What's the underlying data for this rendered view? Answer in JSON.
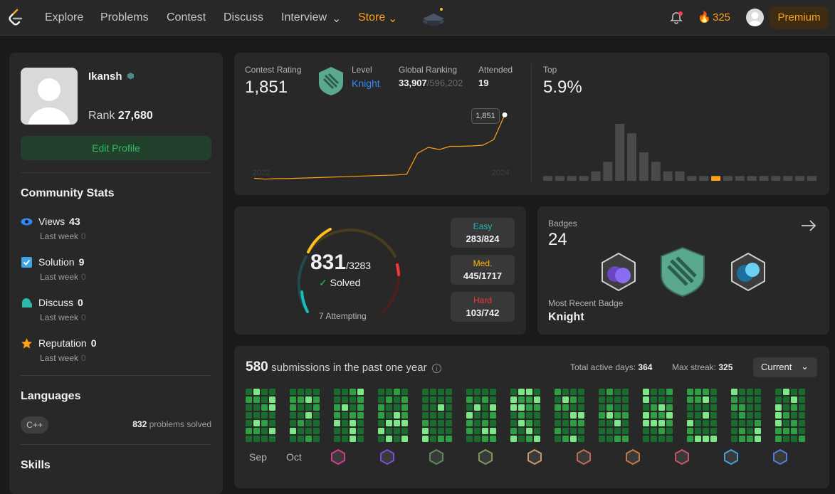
{
  "nav": {
    "items": [
      "Explore",
      "Problems",
      "Contest",
      "Discuss",
      "Interview",
      "Store"
    ],
    "streak": "325",
    "premium": "Premium",
    "accent": "#ffa116"
  },
  "profile": {
    "username": "Ikansh",
    "rank_label": "Rank",
    "rank_value": "27,680",
    "edit_label": "Edit Profile"
  },
  "community": {
    "title": "Community Stats",
    "stats": [
      {
        "label": "Views",
        "value": "43",
        "icon": "eye-icon",
        "sub": "Last week",
        "sub_value": "0"
      },
      {
        "label": "Solution",
        "value": "9",
        "icon": "solution-icon",
        "sub": "Last week",
        "sub_value": "0"
      },
      {
        "label": "Discuss",
        "value": "0",
        "icon": "discuss-icon",
        "sub": "Last week",
        "sub_value": "0"
      },
      {
        "label": "Reputation",
        "value": "0",
        "icon": "star-icon",
        "sub": "Last week",
        "sub_value": "0"
      }
    ]
  },
  "languages": {
    "title": "Languages",
    "tag": "C++",
    "count": "832",
    "suffix": "problems solved"
  },
  "skills": {
    "title": "Skills"
  },
  "contest": {
    "rating_label": "Contest Rating",
    "rating": "1,851",
    "level_label": "Level",
    "level": "Knight",
    "global_label": "Global Ranking",
    "global": "33,907",
    "global_total": "/596,202",
    "attended_label": "Attended",
    "attended": "19",
    "top_label": "Top",
    "top": "5.9%",
    "tooltip": "1,851",
    "year_start": "2022",
    "year_end": "2024"
  },
  "chart_data": [
    {
      "type": "line",
      "title": "",
      "xlabel": "",
      "ylabel": "",
      "x_labels": [
        "2022",
        "2024"
      ],
      "values": [
        1502,
        1497,
        1500,
        1500,
        1502,
        1504,
        1506,
        1508,
        1510,
        1512,
        1514,
        1516,
        1518,
        1520,
        1524,
        1640,
        1672,
        1660,
        1678,
        1678,
        1680,
        1684,
        1715,
        1851
      ]
    },
    {
      "type": "bar",
      "title": "",
      "values": [
        1,
        1,
        1,
        1,
        2,
        4,
        12,
        10,
        6,
        4,
        2,
        2,
        1,
        1,
        1,
        1,
        1,
        1,
        1,
        1,
        1,
        1,
        1
      ],
      "highlight_index": 14,
      "highlight_color": "#ffa116"
    }
  ],
  "solved": {
    "count": "831",
    "total": "/3283",
    "label": "Solved",
    "attempting": "7 Attempting",
    "easy": {
      "label": "Easy",
      "value": "283/824",
      "color": "#1cbaba"
    },
    "medium": {
      "label": "Med.",
      "value": "445/1717",
      "color": "#ffb800"
    },
    "hard": {
      "label": "Hard",
      "value": "103/742",
      "color": "#f63737"
    }
  },
  "badges": {
    "label": "Badges",
    "count": "24",
    "recent_label": "Most Recent Badge",
    "recent": "Knight"
  },
  "submissions": {
    "count": "580",
    "text": "submissions in the past one year",
    "active_label": "Total active days:",
    "active": "364",
    "streak_label": "Max streak:",
    "streak": "325",
    "range": "Current",
    "months": [
      "Sep",
      "Oct"
    ]
  }
}
